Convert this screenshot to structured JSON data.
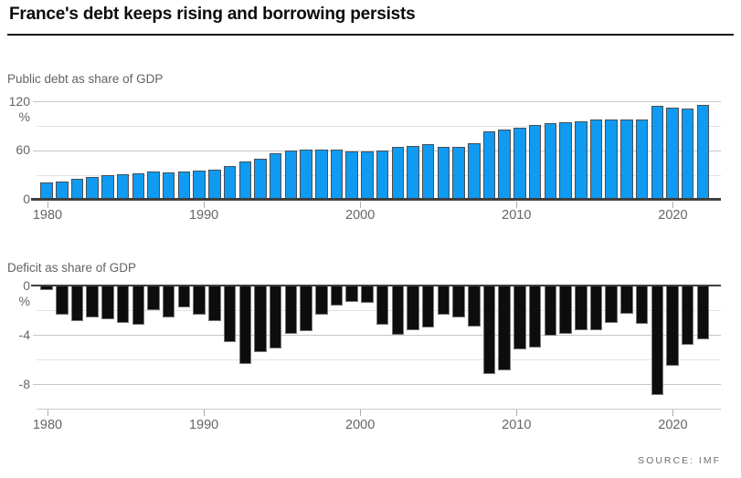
{
  "header": {
    "title": "France's debt keeps rising and borrowing persists"
  },
  "source": {
    "label": "SOURCE: IMF"
  },
  "colors": {
    "debt_bar": "#0f9bf2",
    "debt_bar_border": "#4a4f54",
    "deficit_bar": "#0d0d0d",
    "deficit_bar_border": "#777777",
    "axis": "#3f3f3f",
    "grid_major": "#c7c7c7",
    "grid_minor": "#e2e2e2",
    "label_gray": "#666666"
  },
  "chart_data": [
    {
      "type": "bar",
      "title": "Public debt as share of GDP",
      "unit": "%",
      "x": [
        1980,
        1981,
        1982,
        1983,
        1984,
        1985,
        1986,
        1987,
        1988,
        1989,
        1990,
        1991,
        1992,
        1993,
        1994,
        1995,
        1996,
        1997,
        1998,
        1999,
        2000,
        2001,
        2002,
        2003,
        2004,
        2005,
        2006,
        2007,
        2008,
        2009,
        2010,
        2011,
        2012,
        2013,
        2014,
        2015,
        2016,
        2017,
        2018,
        2019,
        2020,
        2021,
        2022,
        2023
      ],
      "values": [
        21.1,
        22.3,
        25.4,
        26.9,
        29.2,
        30.9,
        31.5,
        33.6,
        33.5,
        34.5,
        35.6,
        36.5,
        40.3,
        46.6,
        49.9,
        56.1,
        59.3,
        61.1,
        61.4,
        60.5,
        58.9,
        58.3,
        60.3,
        64.4,
        65.9,
        67.4,
        64.6,
        64.5,
        68.8,
        83.0,
        85.3,
        87.8,
        90.6,
        93.4,
        94.9,
        95.6,
        98.0,
        98.1,
        97.8,
        97.4,
        114.6,
        112.6,
        111.5,
        115.3
      ],
      "ylim": [
        0,
        120
      ],
      "yticks": [
        {
          "value": 120,
          "label": "120"
        },
        {
          "value": 60,
          "label": "60"
        },
        {
          "value": 0,
          "label": "0"
        }
      ],
      "minor_grid": [
        90,
        30
      ],
      "xticks": [
        1980,
        1990,
        2000,
        2010,
        2020
      ],
      "grid": true,
      "legend": "none"
    },
    {
      "type": "bar",
      "title": "Deficit as share of GDP",
      "unit": "%",
      "x": [
        1980,
        1981,
        1982,
        1983,
        1984,
        1985,
        1986,
        1987,
        1988,
        1989,
        1990,
        1991,
        1992,
        1993,
        1994,
        1995,
        1996,
        1997,
        1998,
        1999,
        2000,
        2001,
        2002,
        2003,
        2004,
        2005,
        2006,
        2007,
        2008,
        2009,
        2010,
        2011,
        2012,
        2013,
        2014,
        2015,
        2016,
        2017,
        2018,
        2019,
        2020,
        2021,
        2022,
        2023
      ],
      "values": [
        -0.4,
        -2.4,
        -2.9,
        -2.6,
        -2.7,
        -3.0,
        -3.2,
        -2.0,
        -2.6,
        -1.8,
        -2.4,
        -2.9,
        -4.6,
        -6.4,
        -5.4,
        -5.1,
        -3.9,
        -3.7,
        -2.4,
        -1.6,
        -1.3,
        -1.4,
        -3.2,
        -4.0,
        -3.6,
        -3.4,
        -2.4,
        -2.6,
        -3.3,
        -7.2,
        -6.9,
        -5.2,
        -5.0,
        -4.1,
        -3.9,
        -3.6,
        -3.6,
        -3.0,
        -2.3,
        -3.1,
        -8.9,
        -6.5,
        -4.8,
        -4.4
      ],
      "ylim": [
        -9.4,
        0
      ],
      "yticks": [
        {
          "value": 0,
          "label": "0"
        },
        {
          "value": -4,
          "label": "-4"
        },
        {
          "value": -8,
          "label": "-8"
        }
      ],
      "minor_grid": [
        -2,
        -6
      ],
      "xticks": [
        1980,
        1990,
        2000,
        2010,
        2020
      ],
      "grid": true,
      "legend": "none"
    }
  ]
}
